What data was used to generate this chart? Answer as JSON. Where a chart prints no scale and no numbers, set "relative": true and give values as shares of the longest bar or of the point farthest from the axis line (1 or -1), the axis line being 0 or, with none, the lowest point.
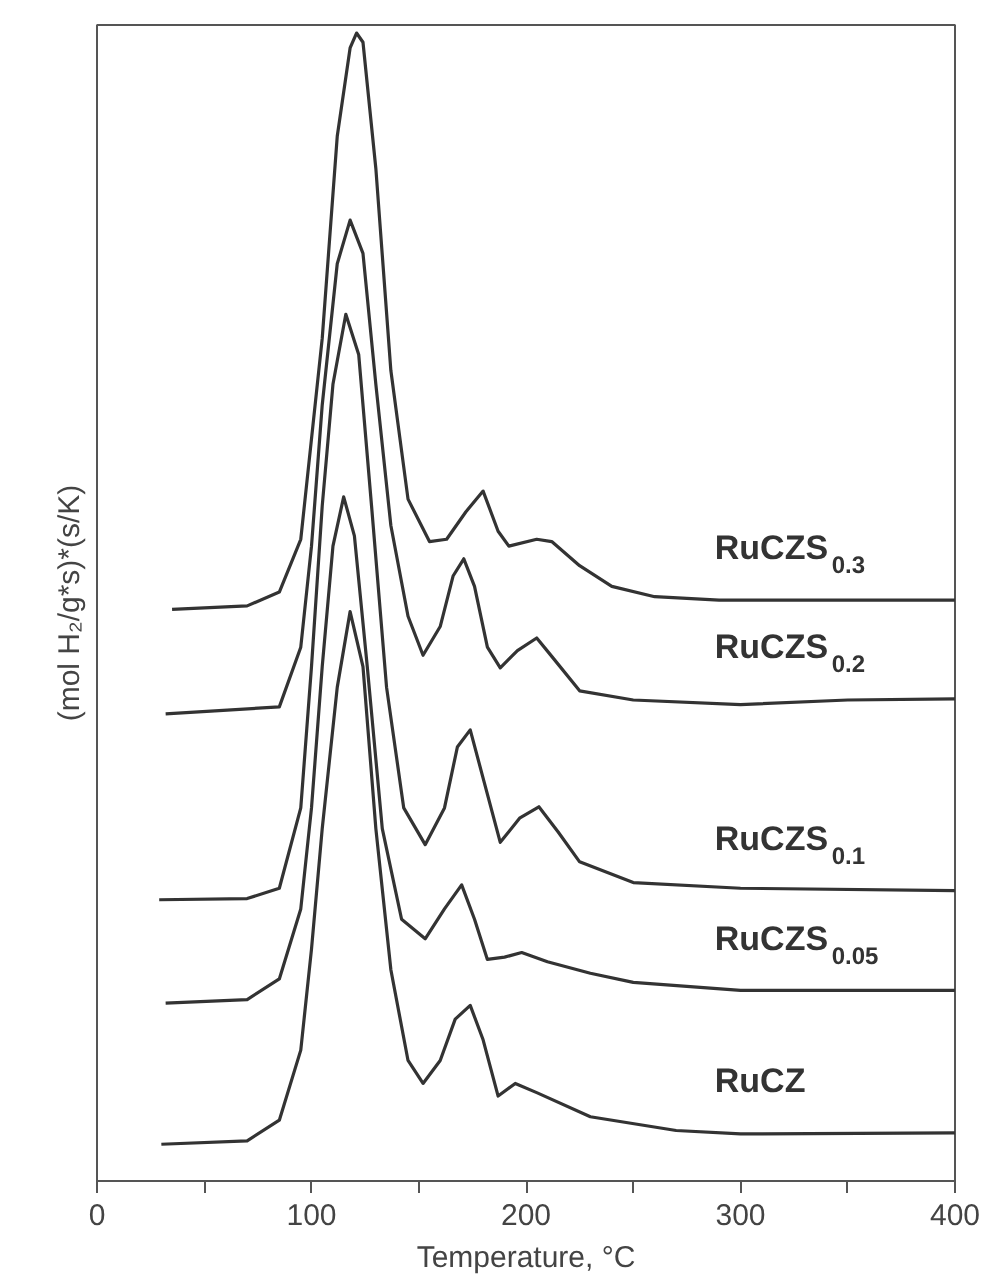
{
  "chart_data": {
    "type": "line",
    "relative": true,
    "xlabel": "Temperature, °C",
    "ylabel": "(mol H₂/g*s)*(s/K)",
    "xlim": [
      0,
      400
    ],
    "xticks": [
      0,
      {
        "value": 50,
        "label": null
      },
      100,
      {
        "value": 150,
        "label": null
      },
      200,
      {
        "value": 250,
        "label": null
      },
      300,
      {
        "value": 350,
        "label": null
      },
      400
    ],
    "grid": false,
    "marker": "none",
    "line_style": "solid",
    "series": [
      {
        "name": "RuCZS$_{0.3}$",
        "color": "#333333",
        "x": [
          35,
          70,
          85,
          95,
          105,
          112,
          118,
          121,
          124,
          130,
          137,
          145,
          155,
          163,
          172,
          180,
          187,
          192,
          205,
          212,
          225,
          240,
          260,
          290,
          350,
          400
        ],
        "values": [
          0.498,
          0.501,
          0.513,
          0.559,
          0.734,
          0.91,
          0.987,
          1.0,
          0.992,
          0.882,
          0.706,
          0.594,
          0.557,
          0.559,
          0.583,
          0.601,
          0.566,
          0.553,
          0.559,
          0.557,
          0.536,
          0.518,
          0.509,
          0.506,
          0.506,
          0.506
        ]
      },
      {
        "name": "RuCZS$_{0.2}$",
        "color": "#333333",
        "x": [
          32,
          85,
          95,
          100,
          105,
          112,
          118,
          124,
          130,
          137,
          145,
          152,
          160,
          166,
          171,
          176,
          182,
          188,
          196,
          205,
          212,
          225,
          250,
          300,
          350,
          400
        ],
        "values": [
          0.407,
          0.413,
          0.465,
          0.553,
          0.676,
          0.799,
          0.837,
          0.808,
          0.694,
          0.571,
          0.492,
          0.458,
          0.483,
          0.527,
          0.542,
          0.518,
          0.465,
          0.447,
          0.462,
          0.473,
          0.457,
          0.427,
          0.419,
          0.415,
          0.419,
          0.42
        ]
      },
      {
        "name": "RuCZS$_{0.1}$",
        "color": "#333333",
        "x": [
          29,
          70,
          85,
          95,
          100,
          105,
          110,
          116,
          122,
          128,
          135,
          143,
          153,
          162,
          168,
          174,
          180,
          188,
          197,
          206,
          215,
          225,
          250,
          300,
          400
        ],
        "values": [
          0.245,
          0.246,
          0.255,
          0.325,
          0.448,
          0.588,
          0.694,
          0.755,
          0.72,
          0.588,
          0.43,
          0.325,
          0.293,
          0.325,
          0.378,
          0.393,
          0.351,
          0.295,
          0.316,
          0.326,
          0.304,
          0.278,
          0.26,
          0.255,
          0.253
        ]
      },
      {
        "name": "RuCZS$_{0.05}$",
        "color": "#333333",
        "x": [
          32,
          70,
          85,
          95,
          100,
          105,
          110,
          115,
          120,
          126,
          133,
          142,
          153,
          162,
          170,
          176,
          182,
          190,
          198,
          210,
          230,
          250,
          300,
          400
        ],
        "values": [
          0.155,
          0.158,
          0.176,
          0.237,
          0.325,
          0.448,
          0.553,
          0.596,
          0.562,
          0.448,
          0.307,
          0.228,
          0.211,
          0.237,
          0.258,
          0.228,
          0.193,
          0.195,
          0.199,
          0.191,
          0.181,
          0.173,
          0.166,
          0.166
        ]
      },
      {
        "name": "RuCZ",
        "color": "#333333",
        "x": [
          30,
          70,
          85,
          95,
          100,
          105,
          112,
          118,
          124,
          130,
          137,
          145,
          152,
          160,
          167,
          174,
          180,
          187,
          195,
          205,
          230,
          270,
          300,
          400
        ],
        "values": [
          0.032,
          0.035,
          0.053,
          0.114,
          0.202,
          0.307,
          0.43,
          0.496,
          0.448,
          0.307,
          0.184,
          0.105,
          0.085,
          0.105,
          0.141,
          0.153,
          0.123,
          0.074,
          0.085,
          0.077,
          0.056,
          0.044,
          0.041,
          0.042
        ]
      }
    ]
  }
}
